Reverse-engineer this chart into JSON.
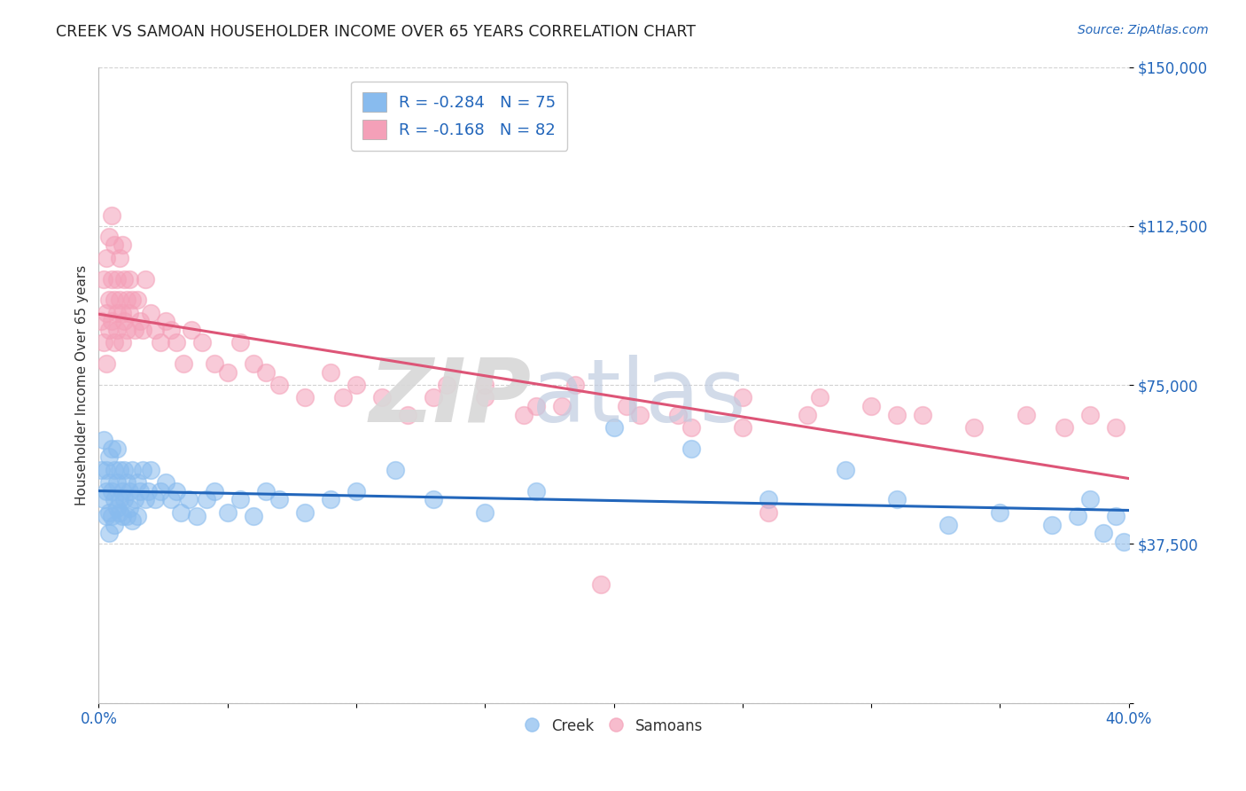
{
  "title": "CREEK VS SAMOAN HOUSEHOLDER INCOME OVER 65 YEARS CORRELATION CHART",
  "source": "Source: ZipAtlas.com",
  "ylabel": "Householder Income Over 65 years",
  "xlim": [
    0.0,
    0.4
  ],
  "ylim": [
    0,
    150000
  ],
  "yticks": [
    0,
    37500,
    75000,
    112500,
    150000
  ],
  "ytick_labels": [
    "",
    "$37,500",
    "$75,000",
    "$112,500",
    "$150,000"
  ],
  "xticks": [
    0.0,
    0.05,
    0.1,
    0.15,
    0.2,
    0.25,
    0.3,
    0.35,
    0.4
  ],
  "xtick_labels": [
    "0.0%",
    "",
    "",
    "",
    "",
    "",
    "",
    "",
    "40.0%"
  ],
  "creek_color": "#88bbee",
  "samoan_color": "#f4a0b8",
  "creek_line_color": "#2266bb",
  "samoan_line_color": "#dd5577",
  "creek_R": -0.284,
  "creek_N": 75,
  "samoan_R": -0.168,
  "samoan_N": 82,
  "background_color": "#ffffff",
  "grid_color": "#cccccc",
  "creek_x": [
    0.001,
    0.002,
    0.002,
    0.003,
    0.003,
    0.003,
    0.004,
    0.004,
    0.004,
    0.004,
    0.005,
    0.005,
    0.005,
    0.006,
    0.006,
    0.006,
    0.007,
    0.007,
    0.007,
    0.008,
    0.008,
    0.008,
    0.009,
    0.009,
    0.01,
    0.01,
    0.011,
    0.011,
    0.012,
    0.012,
    0.013,
    0.013,
    0.014,
    0.015,
    0.015,
    0.016,
    0.017,
    0.018,
    0.019,
    0.02,
    0.022,
    0.024,
    0.026,
    0.028,
    0.03,
    0.032,
    0.035,
    0.038,
    0.042,
    0.045,
    0.05,
    0.055,
    0.06,
    0.065,
    0.07,
    0.08,
    0.09,
    0.1,
    0.115,
    0.13,
    0.15,
    0.17,
    0.2,
    0.23,
    0.26,
    0.29,
    0.31,
    0.33,
    0.35,
    0.37,
    0.38,
    0.385,
    0.39,
    0.395,
    0.398
  ],
  "creek_y": [
    55000,
    62000,
    48000,
    50000,
    55000,
    44000,
    52000,
    45000,
    58000,
    40000,
    60000,
    50000,
    44000,
    55000,
    48000,
    42000,
    52000,
    46000,
    60000,
    55000,
    45000,
    48000,
    50000,
    44000,
    55000,
    48000,
    52000,
    44000,
    50000,
    46000,
    55000,
    43000,
    48000,
    52000,
    44000,
    50000,
    55000,
    48000,
    50000,
    55000,
    48000,
    50000,
    52000,
    48000,
    50000,
    45000,
    48000,
    44000,
    48000,
    50000,
    45000,
    48000,
    44000,
    50000,
    48000,
    45000,
    48000,
    50000,
    55000,
    48000,
    45000,
    50000,
    65000,
    60000,
    48000,
    55000,
    48000,
    42000,
    45000,
    42000,
    44000,
    48000,
    40000,
    44000,
    38000
  ],
  "samoan_x": [
    0.001,
    0.002,
    0.002,
    0.003,
    0.003,
    0.003,
    0.004,
    0.004,
    0.004,
    0.005,
    0.005,
    0.005,
    0.006,
    0.006,
    0.006,
    0.007,
    0.007,
    0.007,
    0.008,
    0.008,
    0.009,
    0.009,
    0.009,
    0.01,
    0.01,
    0.011,
    0.011,
    0.012,
    0.012,
    0.013,
    0.014,
    0.015,
    0.016,
    0.017,
    0.018,
    0.02,
    0.022,
    0.024,
    0.026,
    0.028,
    0.03,
    0.033,
    0.036,
    0.04,
    0.045,
    0.05,
    0.055,
    0.06,
    0.065,
    0.07,
    0.08,
    0.09,
    0.1,
    0.11,
    0.12,
    0.135,
    0.15,
    0.165,
    0.185,
    0.205,
    0.225,
    0.25,
    0.275,
    0.3,
    0.32,
    0.34,
    0.36,
    0.375,
    0.385,
    0.395,
    0.15,
    0.18,
    0.21,
    0.13,
    0.17,
    0.28,
    0.31,
    0.25,
    0.095,
    0.23,
    0.26,
    0.195
  ],
  "samoan_y": [
    90000,
    85000,
    100000,
    105000,
    92000,
    80000,
    110000,
    95000,
    88000,
    100000,
    115000,
    90000,
    108000,
    95000,
    85000,
    100000,
    92000,
    88000,
    105000,
    95000,
    108000,
    92000,
    85000,
    100000,
    90000,
    95000,
    88000,
    100000,
    92000,
    95000,
    88000,
    95000,
    90000,
    88000,
    100000,
    92000,
    88000,
    85000,
    90000,
    88000,
    85000,
    80000,
    88000,
    85000,
    80000,
    78000,
    85000,
    80000,
    78000,
    75000,
    72000,
    78000,
    75000,
    72000,
    68000,
    75000,
    72000,
    68000,
    75000,
    70000,
    68000,
    72000,
    68000,
    70000,
    68000,
    65000,
    68000,
    65000,
    68000,
    65000,
    75000,
    70000,
    68000,
    72000,
    70000,
    72000,
    68000,
    65000,
    72000,
    65000,
    45000,
    28000
  ]
}
